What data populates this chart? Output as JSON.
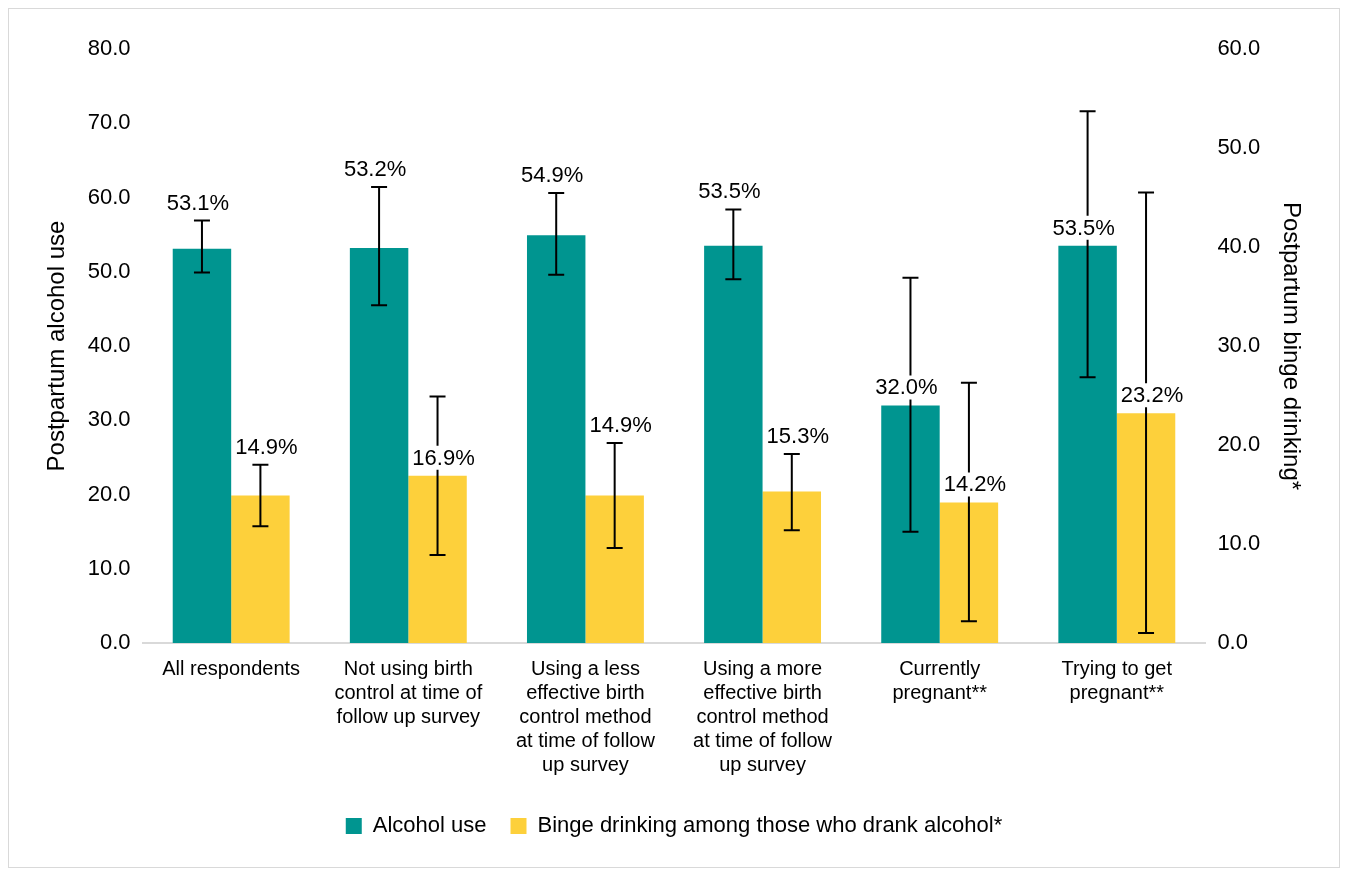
{
  "chart_data": {
    "type": "bar",
    "categories": [
      "All respondents",
      "Not using birth control at time of follow up survey",
      "Using a less effective birth control method at time of follow up survey",
      "Using a more effective birth control method at time of follow up survey",
      "Currently pregnant**",
      "Trying to get pregnant**"
    ],
    "series": [
      {
        "name": "Alcohol use",
        "color": "#009590",
        "values": [
          53.1,
          53.2,
          54.9,
          53.5,
          32.0,
          53.5
        ],
        "value_labels": [
          "53.1%",
          "53.2%",
          "54.9%",
          "53.5%",
          "32.0%",
          "53.5%"
        ],
        "errors": [
          [
            49.9,
            56.9
          ],
          [
            45.5,
            61.4
          ],
          [
            49.6,
            60.6
          ],
          [
            49.0,
            58.4
          ],
          [
            15.0,
            49.2
          ],
          [
            35.8,
            71.6
          ]
        ]
      },
      {
        "name": "Binge drinking among those who drank alcohol*",
        "color": "#fdd03b",
        "axis": "y2",
        "values": [
          14.9,
          16.9,
          14.9,
          15.3,
          14.2,
          23.2
        ],
        "value_labels": [
          "14.9%",
          "16.9%",
          "14.9%",
          "15.3%",
          "14.2%",
          "23.2%"
        ],
        "errors": [
          [
            11.8,
            18.0
          ],
          [
            8.9,
            24.9
          ],
          [
            9.6,
            20.2
          ],
          [
            11.4,
            19.1
          ],
          [
            2.2,
            26.3
          ],
          [
            1.0,
            45.5
          ]
        ]
      }
    ],
    "ylabel": "Postpartum alcohol use",
    "y2label": "Postpartum binge drinking*",
    "ylim": [
      0,
      80
    ],
    "yticks": [
      {
        "value": 0,
        "label": "0.0"
      },
      {
        "value": 10,
        "label": "10.0"
      },
      {
        "value": 20,
        "label": "20.0"
      },
      {
        "value": 30,
        "label": "30.0"
      },
      {
        "value": 40,
        "label": "40.0"
      },
      {
        "value": 50,
        "label": "50.0"
      },
      {
        "value": 60,
        "label": "60.0"
      },
      {
        "value": 70,
        "label": "70.0"
      },
      {
        "value": 80,
        "label": "80.0"
      }
    ],
    "y2lim": [
      0,
      60
    ],
    "y2ticks": [
      {
        "value": 0,
        "label": "0.0"
      },
      {
        "value": 10,
        "label": "10.0"
      },
      {
        "value": 20,
        "label": "20.0"
      },
      {
        "value": 30,
        "label": "30.0"
      },
      {
        "value": 40,
        "label": "40.0"
      },
      {
        "value": 50,
        "label": "50.0"
      },
      {
        "value": 60,
        "label": "60.0"
      }
    ],
    "grid": false,
    "legend": "bottom"
  }
}
